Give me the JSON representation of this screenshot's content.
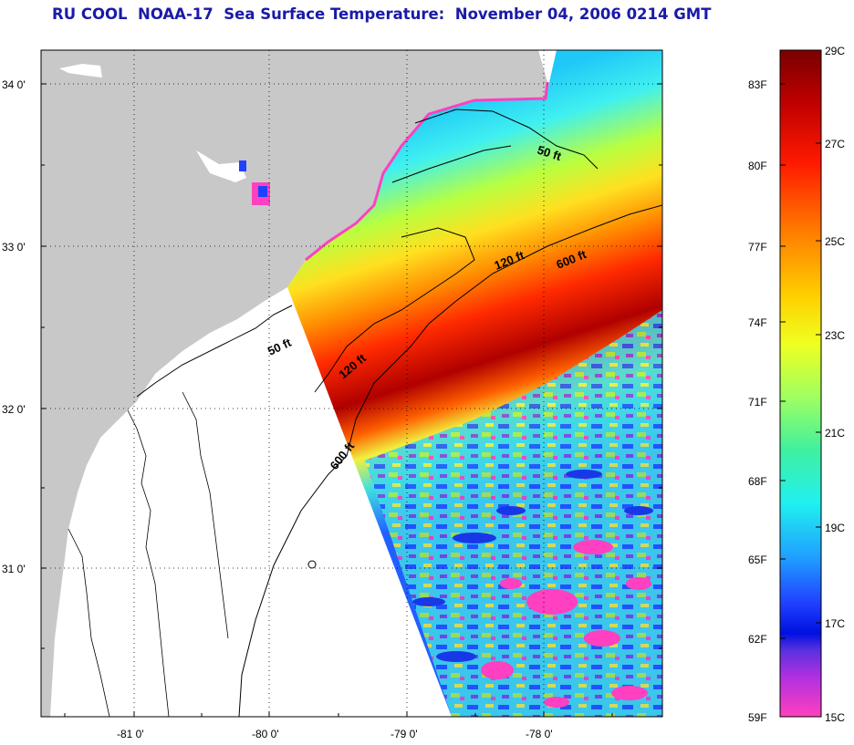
{
  "title": "RU COOL  NOAA-17  Sea Surface Temperature:  November 04, 2006 0214 GMT",
  "lat_labels": [
    "34 0'",
    "33 0'",
    "32 0'",
    "31 0'"
  ],
  "lon_labels": [
    "-81 0'",
    "-80 0'",
    "-79 0'",
    "-78 0'"
  ],
  "contours": {
    "c50a": "50 ft",
    "c120a": "120 ft",
    "c600a": "600 ft",
    "c50b": "50 ft",
    "c120b": "120 ft",
    "c600b": "600 ft"
  },
  "colorbar": {
    "fahrenheit": [
      "83F",
      "80F",
      "77F",
      "74F",
      "71F",
      "68F",
      "65F",
      "62F",
      "59F"
    ],
    "celsius": [
      "29C",
      "27C",
      "25C",
      "23C",
      "21C",
      "19C",
      "17C",
      "15C"
    ]
  },
  "colors": {
    "land": "#c8c8c8",
    "title": "#1a1aa8",
    "warm": "#cc1010",
    "cool": "#30e0f0",
    "cold": "#ff40c0"
  }
}
